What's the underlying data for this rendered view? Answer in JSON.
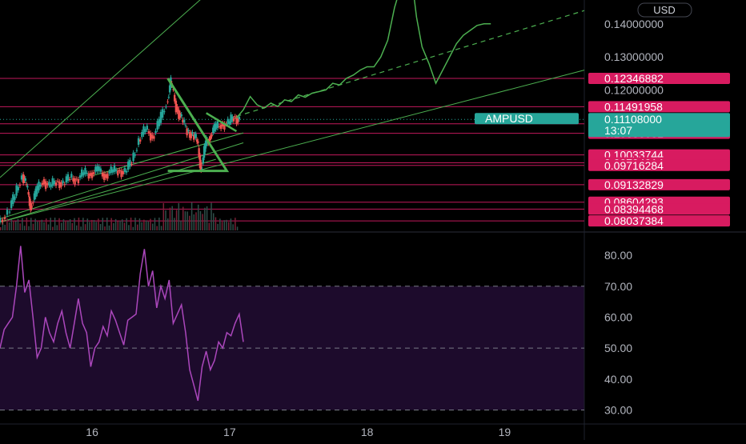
{
  "chart_data": [
    {
      "type": "line",
      "panel": "price",
      "currency_button": "USD",
      "symbol_tag": "AMPUSD",
      "current_price": "0.11108000",
      "countdown": "13:07",
      "y_ticks": [
        "0.14000000",
        "0.13000000",
        "0.12000000"
      ],
      "ylim": [
        0.0775,
        0.1472
      ],
      "price_levels": [
        "0.12346882",
        "0.11491958",
        "0.10976064",
        "0.10686081",
        "0.10033744",
        "0.09794914",
        "0.09716284",
        "0.09132829",
        "0.08604293",
        "0.08394468",
        "0.08037384"
      ],
      "x_ticks": [
        "16",
        "17",
        "18",
        "19"
      ],
      "x_tick_values": [
        16,
        17,
        18,
        19
      ],
      "xlim": [
        15.33,
        19.58
      ],
      "series": [
        {
          "values_x": [
            15.33,
            15.4,
            15.45,
            15.5,
            15.53,
            15.56,
            15.6,
            15.65,
            15.7,
            15.75,
            15.8,
            15.85,
            15.9,
            15.95,
            16.0,
            16.05,
            16.1,
            16.15,
            16.2,
            16.25,
            16.3,
            16.35,
            16.4,
            16.45,
            16.5,
            16.55,
            16.58,
            16.62,
            16.66,
            16.7,
            16.74,
            16.77,
            16.8,
            16.83,
            16.86,
            16.9,
            16.95,
            17.0,
            17.04,
            17.08
          ],
          "values_y": [
            0.08,
            0.083,
            0.088,
            0.0945,
            0.0905,
            0.085,
            0.0885,
            0.093,
            0.0905,
            0.0925,
            0.0915,
            0.0935,
            0.093,
            0.0945,
            0.095,
            0.0955,
            0.0945,
            0.095,
            0.0958,
            0.095,
            0.0985,
            0.105,
            0.108,
            0.106,
            0.11,
            0.1165,
            0.122,
            0.115,
            0.111,
            0.1075,
            0.1065,
            0.1045,
            0.096,
            0.103,
            0.106,
            0.108,
            0.11,
            0.1095,
            0.112,
            0.1108
          ]
        },
        {
          "values_x": [
            17.05,
            17.1,
            17.15,
            17.2,
            17.25,
            17.3,
            17.35,
            17.4,
            17.45,
            17.5,
            17.55,
            17.6,
            17.65,
            17.7,
            17.75,
            17.8,
            17.85,
            17.9,
            17.95,
            18.0,
            18.05,
            18.1,
            18.15,
            18.2,
            18.25,
            18.3,
            18.33,
            18.36,
            18.4,
            18.45,
            18.5,
            18.55,
            18.6,
            18.65,
            18.7,
            18.75,
            18.8,
            18.85,
            18.9
          ],
          "values_y": [
            0.1115,
            0.114,
            0.118,
            0.1155,
            0.1145,
            0.116,
            0.115,
            0.117,
            0.1165,
            0.1185,
            0.1178,
            0.119,
            0.1195,
            0.12,
            0.122,
            0.1215,
            0.1235,
            0.1245,
            0.126,
            0.127,
            0.127,
            0.13,
            0.135,
            0.145,
            0.152,
            0.155,
            0.152,
            0.142,
            0.133,
            0.128,
            0.122,
            0.126,
            0.13,
            0.134,
            0.1365,
            0.138,
            0.1395,
            0.14,
            0.14
          ]
        }
      ]
    },
    {
      "type": "line",
      "panel": "rsi",
      "y_ticks": [
        "80.00",
        "70.00",
        "60.00",
        "50.00",
        "40.00",
        "30.00"
      ],
      "ylim": [
        26,
        87
      ],
      "levels": [
        70,
        50,
        30
      ],
      "x_ticks": [
        "16",
        "17",
        "18",
        "19"
      ],
      "xlim": [
        15.33,
        19.58
      ],
      "series": [
        {
          "values_x": [
            15.33,
            15.36,
            15.39,
            15.42,
            15.45,
            15.48,
            15.51,
            15.54,
            15.57,
            15.6,
            15.63,
            15.66,
            15.69,
            15.72,
            15.75,
            15.78,
            15.81,
            15.84,
            15.87,
            15.9,
            15.93,
            15.96,
            15.99,
            16.02,
            16.05,
            16.08,
            16.11,
            16.14,
            16.17,
            16.2,
            16.23,
            16.26,
            16.29,
            16.32,
            16.35,
            16.38,
            16.41,
            16.44,
            16.47,
            16.5,
            16.53,
            16.56,
            16.59,
            16.62,
            16.65,
            16.68,
            16.71,
            16.74,
            16.77,
            16.8,
            16.83,
            16.86,
            16.89,
            16.92,
            16.95,
            16.98,
            17.01,
            17.04,
            17.07,
            17.1
          ],
          "values_y": [
            50,
            56,
            58,
            60,
            70,
            83,
            68,
            72,
            60,
            47,
            50,
            60,
            55,
            52,
            58,
            62,
            55,
            50,
            58,
            66,
            58,
            55,
            44,
            50,
            52,
            57,
            54,
            62,
            59,
            55,
            51,
            59,
            60,
            61,
            74,
            82,
            70,
            75,
            63,
            70,
            66,
            72,
            58,
            61,
            64,
            55,
            43,
            38,
            33,
            44,
            49,
            43,
            46,
            52,
            50,
            55,
            54,
            58,
            61,
            52
          ]
        }
      ]
    }
  ]
}
